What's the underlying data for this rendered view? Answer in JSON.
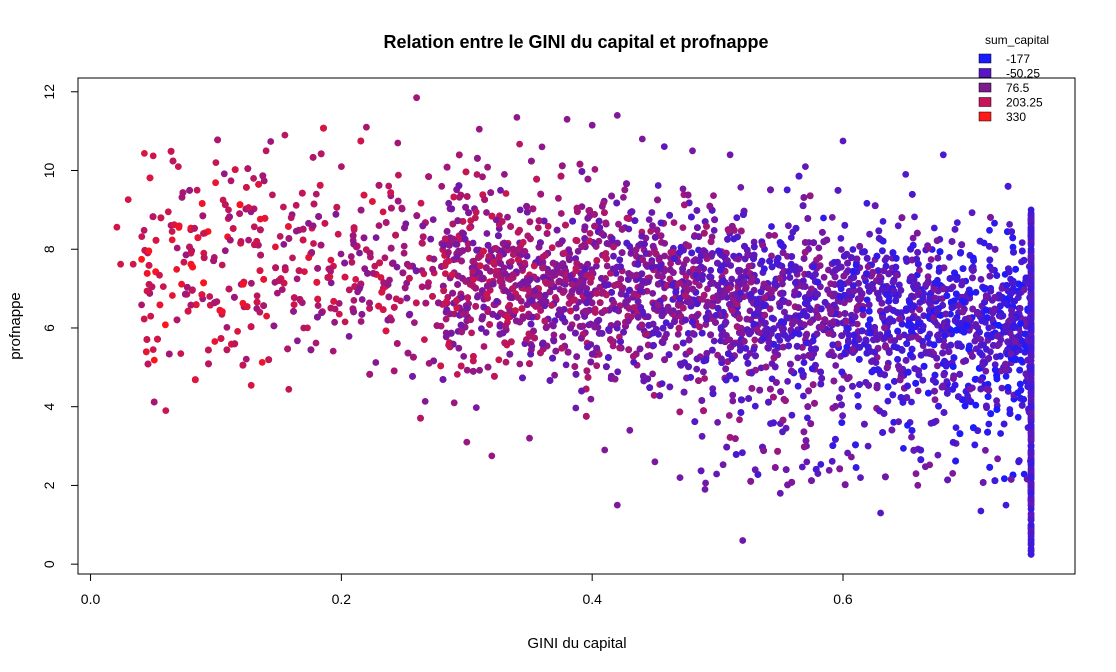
{
  "chart_data": {
    "type": "scatter",
    "title": "Relation entre le GINI du capital et profnappe",
    "xlabel": "GINI du capital",
    "ylabel": "profnappe",
    "xlim": [
      -0.01,
      0.785
    ],
    "ylim": [
      -0.25,
      12.35
    ],
    "x_ticks": [
      0.0,
      0.2,
      0.4,
      0.6
    ],
    "x_tick_labels": [
      "0.0",
      "0.2",
      "0.4",
      "0.6"
    ],
    "y_ticks": [
      0,
      2,
      4,
      6,
      8,
      10,
      12
    ],
    "y_tick_labels": [
      "0",
      "2",
      "4",
      "6",
      "8",
      "10",
      "12"
    ],
    "grid": false,
    "legend": {
      "title": "sum_capital",
      "placement": "top-right",
      "entries": [
        {
          "label": "-177",
          "color": "#1a1aff"
        },
        {
          "label": "-50.25",
          "color": "#5a14c8"
        },
        {
          "label": "76.5",
          "color": "#7a1a8c"
        },
        {
          "label": "203.25",
          "color": "#c8145a"
        },
        {
          "label": "330",
          "color": "#ff1a1a"
        }
      ]
    },
    "series": [
      {
        "points": [
          [
            0.021,
            8.56
          ],
          [
            0.024,
            7.62
          ],
          [
            0.03,
            9.26
          ],
          [
            0.034,
            7.62
          ],
          [
            0.045,
            6.94
          ],
          [
            0.048,
            6.3
          ],
          [
            0.05,
            5.45
          ],
          [
            0.05,
            10.37
          ],
          [
            0.055,
            7.34
          ],
          [
            0.058,
            7.05
          ],
          [
            0.06,
            3.9
          ],
          [
            0.062,
            8.95
          ],
          [
            0.065,
            8.45
          ],
          [
            0.07,
            10.1
          ],
          [
            0.072,
            5.35
          ],
          [
            0.08,
            7.9
          ],
          [
            0.085,
            9.5
          ],
          [
            0.09,
            8.4
          ],
          [
            0.095,
            6.8
          ],
          [
            0.1,
            10.2
          ],
          [
            0.105,
            7.6
          ],
          [
            0.11,
            9.0
          ],
          [
            0.115,
            5.6
          ],
          [
            0.12,
            8.2
          ],
          [
            0.13,
            9.8
          ],
          [
            0.135,
            6.4
          ],
          [
            0.14,
            10.5
          ],
          [
            0.15,
            7.2
          ],
          [
            0.155,
            10.9
          ],
          [
            0.16,
            8.8
          ],
          [
            0.17,
            6.0
          ],
          [
            0.18,
            9.4
          ],
          [
            0.19,
            7.5
          ],
          [
            0.2,
            10.1
          ],
          [
            0.21,
            6.7
          ],
          [
            0.22,
            11.1
          ],
          [
            0.23,
            8.6
          ],
          [
            0.24,
            6.2
          ],
          [
            0.245,
            10.7
          ],
          [
            0.25,
            7.9
          ],
          [
            0.26,
            11.85
          ],
          [
            0.27,
            5.1
          ],
          [
            0.28,
            9.6
          ],
          [
            0.29,
            4.1
          ],
          [
            0.3,
            3.1
          ],
          [
            0.31,
            11.05
          ],
          [
            0.32,
            2.75
          ],
          [
            0.33,
            9.9
          ],
          [
            0.34,
            11.35
          ],
          [
            0.35,
            3.2
          ],
          [
            0.36,
            10.6
          ],
          [
            0.37,
            4.8
          ],
          [
            0.38,
            11.3
          ],
          [
            0.4,
            11.15
          ],
          [
            0.41,
            2.9
          ],
          [
            0.42,
            1.5
          ],
          [
            0.42,
            11.4
          ],
          [
            0.43,
            3.4
          ],
          [
            0.44,
            10.8
          ],
          [
            0.45,
            2.6
          ],
          [
            0.47,
            2.2
          ],
          [
            0.48,
            10.5
          ],
          [
            0.49,
            1.9
          ],
          [
            0.5,
            3.6
          ],
          [
            0.51,
            10.4
          ],
          [
            0.52,
            0.6
          ],
          [
            0.53,
            2.4
          ],
          [
            0.55,
            1.8
          ],
          [
            0.57,
            10.1
          ],
          [
            0.58,
            2.3
          ],
          [
            0.6,
            10.75
          ],
          [
            0.62,
            3.0
          ],
          [
            0.63,
            1.3
          ],
          [
            0.65,
            9.9
          ],
          [
            0.68,
            10.4
          ],
          [
            0.7,
            4.2
          ],
          [
            0.71,
            1.35
          ],
          [
            0.73,
            1.5
          ],
          [
            0.74,
            2.6
          ],
          [
            0.75,
            0.25
          ],
          [
            0.75,
            0.4
          ],
          [
            0.75,
            0.6
          ],
          [
            0.75,
            1.0
          ],
          [
            0.75,
            1.4
          ],
          [
            0.75,
            1.8
          ],
          [
            0.75,
            2.2
          ],
          [
            0.75,
            2.6
          ],
          [
            0.75,
            3.0
          ],
          [
            0.75,
            3.5
          ],
          [
            0.75,
            4.0
          ],
          [
            0.75,
            4.5
          ],
          [
            0.75,
            5.0
          ],
          [
            0.75,
            5.5
          ],
          [
            0.75,
            6.0
          ],
          [
            0.75,
            6.5
          ],
          [
            0.75,
            7.0
          ],
          [
            0.75,
            7.5
          ],
          [
            0.75,
            8.0
          ],
          [
            0.75,
            8.5
          ],
          [
            0.75,
            9.0
          ]
        ]
      }
    ]
  }
}
